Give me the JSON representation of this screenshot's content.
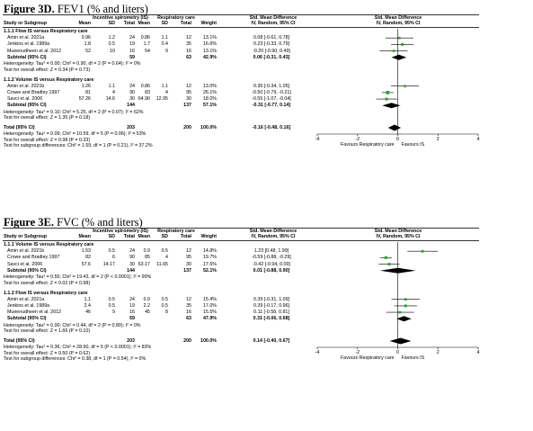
{
  "figures": [
    {
      "label": "Figure 3D.",
      "subtitle": "FEV1 (% and liters)",
      "headers": {
        "study": "Study or Subgroup",
        "group1": "Incentive spirometry (IS)",
        "group2": "Respiratory care",
        "mean": "Mean",
        "sd": "SD",
        "total": "Total",
        "weight": "Weight",
        "smd_title": "Std. Mean Difference",
        "smd_method": "IV, Random, 95% CI",
        "plot_title": "Std. Mean Difference",
        "plot_method": "IV, Random, 95% CI"
      },
      "subgroups": [
        {
          "title": "1.1.1 Flow IS versus Respiratory care",
          "rows": [
            {
              "study": "Amin et al. 2021a",
              "m1": "0.96",
              "sd1": "1.2",
              "n1": "24",
              "m2": "0.86",
              "sd2": "1.1",
              "n2": "12",
              "weight": "13.1%",
              "ci": "0.08 [-0.61, 0.78]"
            },
            {
              "study": "Jenkins et al. 1989a",
              "m1": "1.8",
              "sd1": "0.5",
              "n1": "19",
              "m2": "1.7",
              "sd2": "0.4",
              "n2": "35",
              "weight": "16.6%",
              "ci": "0.23 [-0.33, 0.79]"
            },
            {
              "study": "Mueenudheen et al. 2012",
              "m1": "52",
              "sd1": "10",
              "n1": "16",
              "m2": "54",
              "sd2": "9",
              "n2": "16",
              "weight": "13.1%",
              "ci": "-0.20 [-0.90, 0.49]"
            }
          ],
          "subtotal": {
            "label": "Subtotal (95% CI)",
            "n1": "59",
            "n2": "63",
            "weight": "42.9%",
            "ci": "0.06 [-0.31, 0.43]"
          },
          "heterogeneity": "Heterogeneity: Tau² = 0.00; Chi² = 0.90, df = 2 (P = 0.64); I² = 0%",
          "overall_effect": "Test for overall effect: Z = 0.34 (P = 0.73)"
        },
        {
          "title": "1.1.2 Volume IS versus Respiratory care",
          "rows": [
            {
              "study": "Amin et al. 2021b",
              "m1": "1.26",
              "sd1": "1.1",
              "n1": "24",
              "m2": "0.86",
              "sd2": "1.1",
              "n2": "12",
              "weight": "13.0%",
              "ci": "0.36 [-0.34, 1.05]"
            },
            {
              "study": "Crowe and Bradley 1997",
              "m1": "81",
              "sd1": "4",
              "n1": "90",
              "m2": "83",
              "sd2": "4",
              "n2": "95",
              "weight": "26.1%",
              "ci": "-0.50 [-0.79, -0.21]"
            },
            {
              "study": "Savci et al. 2006",
              "m1": "57.26",
              "sd1": "14.6",
              "n1": "30",
              "m2": "64.90",
              "sd2": "12.95",
              "n2": "30",
              "weight": "18.0%",
              "ci": "-0.55 [-1.07, -0.04]"
            }
          ],
          "subtotal": {
            "label": "Subtotal (95% CI)",
            "n1": "144",
            "n2": "137",
            "weight": "57.1%",
            "ci": "-0.31 [-0.77, 0.14]"
          },
          "heterogeneity": "Heterogeneity: Tau² = 0.10; Chi² = 5.25, df = 2 (P = 0.07); I² = 62%",
          "overall_effect": "Test for overall effect: Z = 1.35 (P = 0.18)"
        }
      ],
      "total": {
        "label": "Total (95% CI)",
        "n1": "203",
        "n2": "200",
        "weight": "100.0%",
        "ci": "-0.16 [-0.48, 0.16]"
      },
      "footer": [
        "Heterogeneity: Tau² = 0.09; Chi² = 10.59, df = 5 (P = 0.06); I² = 53%",
        "Test for overall effect: Z = 0.98 (P = 0.33)",
        "Test for subgroup differences: Chi² = 1.59, df = 1 (P = 0.21), I² = 37.2%"
      ],
      "axis": {
        "ticks": [
          "-4",
          "-2",
          "0",
          "2",
          "4"
        ],
        "left_label": "Favours Respiratory care",
        "right_label": "Favours IS"
      }
    },
    {
      "label": "Figure 3E.",
      "subtitle": "FVC (% and liters)",
      "headers": {
        "study": "Study or Subgroup",
        "group1": "Incentive spirometry (IS)",
        "group2": "Respiratory care",
        "mean": "Mean",
        "sd": "SD",
        "total": "Total",
        "weight": "Weight",
        "smd_title": "Std. Mean Difference",
        "smd_method": "IV, Random, 95% CI",
        "plot_title": "Std. Mean Difference",
        "plot_method": "IV, Random, 95% CI"
      },
      "subgroups": [
        {
          "title": "1.1.1 Volume IS versus Respiratory care",
          "rows": [
            {
              "study": "Amin et al. 2021b",
              "m1": "1.53",
              "sd1": "0.5",
              "n1": "24",
              "m2": "0.9",
              "sd2": "0.5",
              "n2": "12",
              "weight": "14.8%",
              "ci": "1.23 [0.48, 1.99]"
            },
            {
              "study": "Crowe and Bradley 1997",
              "m1": "82",
              "sd1": "6",
              "n1": "90",
              "m2": "85",
              "sd2": "4",
              "n2": "95",
              "weight": "19.7%",
              "ci": "-0.59 [-0.88, -0.29]"
            },
            {
              "study": "Savci et al. 2006",
              "m1": "57.6",
              "sd1": "14.17",
              "n1": "30",
              "m2": "63.17",
              "sd2": "11.65",
              "n2": "30",
              "weight": "17.6%",
              "ci": "-0.42 [-0.94, 0.09]"
            }
          ],
          "subtotal": {
            "label": "Subtotal (95% CI)",
            "n1": "144",
            "n2": "137",
            "weight": "52.1%",
            "ci": "0.01 [-0.88, 0.90]"
          },
          "heterogeneity": "Heterogeneity: Tau² = 0.55; Chi² = 19.43, df = 2 (P < 0.0001); I² = 90%",
          "overall_effect": "Test for overall effect: Z = 0.02 (P = 0.98)"
        },
        {
          "title": "1.1.2 Flow IS versus Respiratory care",
          "rows": [
            {
              "study": "Amin et al. 2021a",
              "m1": "1.1",
              "sd1": "0.5",
              "n1": "24",
              "m2": "0.9",
              "sd2": "0.5",
              "n2": "12",
              "weight": "15.4%",
              "ci": "0.39 [-0.31, 1.09]"
            },
            {
              "study": "Jenkins et al. 1989a",
              "m1": "2.4",
              "sd1": "0.5",
              "n1": "19",
              "m2": "2.2",
              "sd2": "0.5",
              "n2": "35",
              "weight": "17.0%",
              "ci": "0.39 [-0.17, 0.96]"
            },
            {
              "study": "Mueenudheen et al. 2012",
              "m1": "46",
              "sd1": "9",
              "n1": "16",
              "m2": "45",
              "sd2": "8",
              "n2": "16",
              "weight": "15.5%",
              "ci": "0.11 [-0.58, 0.81]"
            }
          ],
          "subtotal": {
            "label": "Subtotal (95% CI)",
            "n1": "59",
            "n2": "63",
            "weight": "47.9%",
            "ci": "0.31 [-0.06, 0.68]"
          },
          "heterogeneity": "Heterogeneity: Tau² = 0.00; Chi² = 0.44, df = 2 (P = 0.80); I² = 0%",
          "overall_effect": "Test for overall effect: Z = 1.66 (P = 0.10)"
        }
      ],
      "total": {
        "label": "Total (95% CI)",
        "n1": "203",
        "n2": "200",
        "weight": "100.0%",
        "ci": "0.14 [-0.40, 0.67]"
      },
      "footer": [
        "Heterogeneity: Tau² = 0.36; Chi² = 28.90, df = 5 (P < 0.0001); I² = 83%",
        "Test for overall effect: Z = 0.50 (P = 0.62)",
        "Test for subgroup differences: Chi² = 0.38, df = 1 (P = 0.54), I² = 0%"
      ],
      "axis": {
        "ticks": [
          "-4",
          "-2",
          "0",
          "2",
          "4"
        ],
        "left_label": "Favours Respiratory care",
        "right_label": "Favours IS"
      }
    }
  ],
  "colors": {
    "study_marker": "#2fa12f",
    "diamond": "#000000",
    "ci_line": "#000000"
  },
  "chart_data": [
    {
      "type": "forest",
      "xlim": [
        -4,
        4
      ],
      "studies": [
        {
          "name": "Amin et al. 2021a",
          "smd": 0.08,
          "lo": -0.61,
          "hi": 0.78,
          "weight": 13.1
        },
        {
          "name": "Jenkins et al. 1989a",
          "smd": 0.23,
          "lo": -0.33,
          "hi": 0.79,
          "weight": 16.6
        },
        {
          "name": "Mueenudheen et al. 2012",
          "smd": -0.2,
          "lo": -0.9,
          "hi": 0.49,
          "weight": 13.1
        },
        {
          "name": "Amin et al. 2021b",
          "smd": 0.36,
          "lo": -0.34,
          "hi": 1.05,
          "weight": 13.0
        },
        {
          "name": "Crowe and Bradley 1997",
          "smd": -0.5,
          "lo": -0.79,
          "hi": -0.21,
          "weight": 26.1
        },
        {
          "name": "Savci et al. 2006",
          "smd": -0.55,
          "lo": -1.07,
          "hi": -0.04,
          "weight": 18.0
        }
      ],
      "subtotals": [
        {
          "smd": 0.06,
          "lo": -0.31,
          "hi": 0.43
        },
        {
          "smd": -0.31,
          "lo": -0.77,
          "hi": 0.14
        }
      ],
      "total": {
        "smd": -0.16,
        "lo": -0.48,
        "hi": 0.16
      }
    },
    {
      "type": "forest",
      "xlim": [
        -4,
        4
      ],
      "studies": [
        {
          "name": "Amin et al. 2021b",
          "smd": 1.23,
          "lo": 0.48,
          "hi": 1.99,
          "weight": 14.8
        },
        {
          "name": "Crowe and Bradley 1997",
          "smd": -0.59,
          "lo": -0.88,
          "hi": -0.29,
          "weight": 19.7
        },
        {
          "name": "Savci et al. 2006",
          "smd": -0.42,
          "lo": -0.94,
          "hi": 0.09,
          "weight": 17.6
        },
        {
          "name": "Amin et al. 2021a",
          "smd": 0.39,
          "lo": -0.31,
          "hi": 1.09,
          "weight": 15.4
        },
        {
          "name": "Jenkins et al. 1989a",
          "smd": 0.39,
          "lo": -0.17,
          "hi": 0.96,
          "weight": 17.0
        },
        {
          "name": "Mueenudheen et al. 2012",
          "smd": 0.11,
          "lo": -0.58,
          "hi": 0.81,
          "weight": 15.5
        }
      ],
      "subtotals": [
        {
          "smd": 0.01,
          "lo": -0.88,
          "hi": 0.9
        },
        {
          "smd": 0.31,
          "lo": -0.06,
          "hi": 0.68
        }
      ],
      "total": {
        "smd": 0.14,
        "lo": -0.4,
        "hi": 0.67
      }
    }
  ]
}
